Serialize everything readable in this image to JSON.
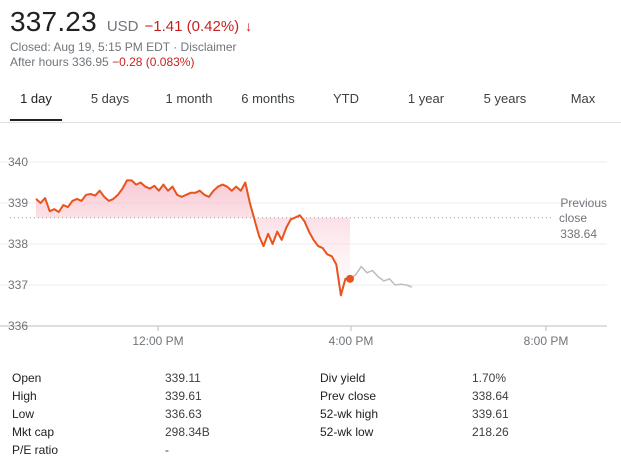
{
  "header": {
    "price": "337.23",
    "currency": "USD",
    "change": "−1.41 (0.42%)",
    "arrow": "↓",
    "closed_text": "Closed: Aug 19, 5:15 PM EDT · Disclaimer",
    "after_hours_label": "After hours 336.95",
    "after_hours_change": "−0.28 (0.083%)"
  },
  "tabs": [
    "1 day",
    "5 days",
    "1 month",
    "6 months",
    "YTD",
    "1 year",
    "5 years",
    "Max"
  ],
  "chart_data": {
    "type": "line",
    "ylim": [
      336,
      340
    ],
    "yticks": [
      "340",
      "339",
      "338",
      "337",
      "336"
    ],
    "xticks": [
      "12:00 PM",
      "4:00 PM",
      "8:00 PM"
    ],
    "previous_close": {
      "label_line1": "Previous",
      "label_line2": "close",
      "value": "338.64"
    },
    "colors": {
      "line": "#e8541b",
      "fill": "#f8c9d4",
      "after_hours": "#bdbdbd",
      "dot": "#e8541b"
    },
    "series": [
      {
        "values_regular": [
          339.1,
          339.0,
          339.12,
          338.8,
          338.85,
          338.78,
          338.95,
          338.9,
          339.05,
          339.1,
          339.05,
          339.2,
          339.22,
          339.18,
          339.3,
          339.15,
          339.05,
          339.1,
          339.2,
          339.35,
          339.55,
          339.55,
          339.45,
          339.5,
          339.4,
          339.35,
          339.42,
          339.3,
          339.45,
          339.3,
          339.4,
          339.2,
          339.15,
          339.2,
          339.25,
          339.25,
          339.3,
          339.2,
          339.15,
          339.3,
          339.4,
          339.45,
          339.4,
          339.3,
          339.4,
          339.3,
          339.5,
          339.0,
          338.6,
          338.2,
          337.95,
          338.25,
          338.0,
          338.3,
          338.1,
          338.4,
          338.6,
          338.65,
          338.7,
          338.55,
          338.3,
          338.1,
          337.95,
          337.9,
          337.75,
          337.7,
          337.5,
          336.75,
          337.15,
          337.15
        ]
      },
      {
        "values_after_hours": [
          337.15,
          337.25,
          337.45,
          337.3,
          337.35,
          337.2,
          337.1,
          337.15,
          337.0,
          337.02,
          337.0,
          336.95
        ]
      }
    ]
  },
  "stats": {
    "left": [
      {
        "label": "Open",
        "value": "339.11"
      },
      {
        "label": "High",
        "value": "339.61"
      },
      {
        "label": "Low",
        "value": "336.63"
      },
      {
        "label": "Mkt cap",
        "value": "298.34B"
      },
      {
        "label": "P/E ratio",
        "value": "-"
      }
    ],
    "right": [
      {
        "label": "Div yield",
        "value": "1.70%"
      },
      {
        "label": "Prev close",
        "value": "338.64"
      },
      {
        "label": "52-wk high",
        "value": "339.61"
      },
      {
        "label": "52-wk low",
        "value": "218.26"
      }
    ]
  }
}
